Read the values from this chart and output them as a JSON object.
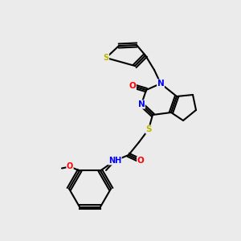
{
  "background_color": "#ebebeb",
  "bond_color": "#000000",
  "atom_colors": {
    "S": "#b8b800",
    "N": "#0000ff",
    "O": "#ff0000",
    "H": "#708090",
    "C": "#000000"
  }
}
